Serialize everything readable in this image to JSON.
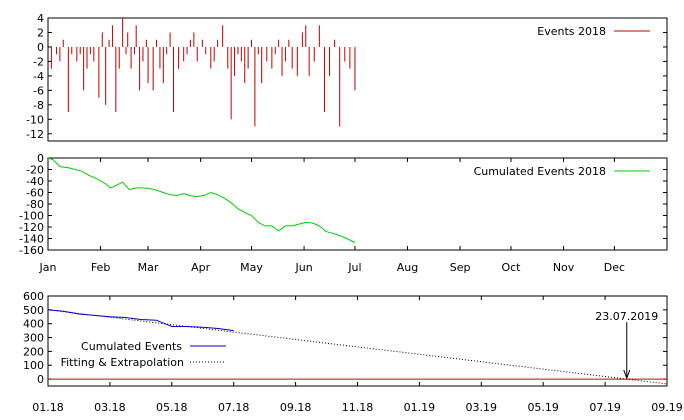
{
  "colors": {
    "bar": "#c00000",
    "cumulative": "#00cc00",
    "fit_line": "#0000cc",
    "zero_line": "#cc0000",
    "axis": "#000000"
  },
  "chart_data": [
    {
      "type": "bar",
      "legend": "Events 2018",
      "legend_position": "top-right",
      "ylim": [
        -13,
        4
      ],
      "yticks": [
        4,
        2,
        0,
        -2,
        -4,
        -6,
        -8,
        -10,
        -12
      ],
      "x_range_days": [
        0,
        365
      ],
      "x": [
        2,
        5,
        7,
        9,
        12,
        14,
        17,
        19,
        21,
        23,
        25,
        27,
        30,
        32,
        34,
        36,
        38,
        40,
        42,
        44,
        46,
        47,
        49,
        51,
        52,
        54,
        56,
        58,
        59,
        62,
        64,
        66,
        68,
        70,
        72,
        74,
        77,
        80,
        82,
        84,
        86,
        88,
        91,
        93,
        96,
        98,
        100,
        103,
        106,
        108,
        110,
        112,
        114,
        116,
        118,
        120,
        122,
        124,
        126,
        129,
        132,
        134,
        136,
        138,
        140,
        142,
        144,
        147,
        150,
        152,
        154,
        157,
        160,
        163,
        166,
        169,
        172,
        175,
        178,
        181
      ],
      "values": [
        -3,
        -1,
        -2,
        1,
        -9,
        -1,
        -2,
        -1,
        -6,
        -3,
        -1,
        -2,
        -7,
        2,
        -8,
        1,
        3,
        -9,
        -3,
        4,
        -1,
        2,
        -3,
        -1,
        3,
        -6,
        -2,
        1,
        -5,
        -6,
        1,
        -3,
        -5,
        -1,
        2,
        -9,
        -3,
        -2,
        -1,
        1,
        2,
        -2,
        1,
        -1,
        -3,
        -2,
        1,
        3,
        -3,
        -10,
        -4,
        -1,
        -2,
        -5,
        -3,
        1,
        -11,
        -1,
        -5,
        -2,
        -3,
        -1,
        1,
        -4,
        -2,
        1,
        -3,
        -4,
        2,
        3,
        -4,
        -2,
        3,
        -9,
        -4,
        1,
        -11,
        -2,
        -3,
        -6
      ]
    },
    {
      "type": "line",
      "legend": "Cumulated Events 2018",
      "legend_position": "top-right",
      "ylim": [
        -160,
        0
      ],
      "yticks": [
        0,
        -20,
        -40,
        -60,
        -80,
        -100,
        -120,
        -140,
        -160
      ],
      "xticks": [
        "Jan",
        "Feb",
        "Mar",
        "Apr",
        "May",
        "Jun",
        "Jul",
        "Aug",
        "Sep",
        "Oct",
        "Nov",
        "Dec"
      ],
      "x": [
        0,
        3,
        7,
        12,
        16,
        20,
        24,
        28,
        31,
        34,
        37,
        40,
        44,
        48,
        52,
        56,
        60,
        64,
        68,
        72,
        76,
        80,
        84,
        88,
        92,
        96,
        100,
        104,
        108,
        112,
        116,
        120,
        124,
        128,
        132,
        136,
        140,
        144,
        148,
        152,
        156,
        160,
        164,
        168,
        172,
        176,
        181
      ],
      "y": [
        0,
        -3,
        -15,
        -17,
        -20,
        -23,
        -30,
        -35,
        -40,
        -45,
        -52,
        -48,
        -42,
        -55,
        -52,
        -52,
        -53,
        -56,
        -60,
        -64,
        -65,
        -62,
        -66,
        -67,
        -65,
        -60,
        -64,
        -70,
        -78,
        -88,
        -95,
        -100,
        -112,
        -118,
        -118,
        -127,
        -118,
        -118,
        -115,
        -112,
        -113,
        -118,
        -128,
        -131,
        -135,
        -140,
        -147
      ]
    },
    {
      "type": "line",
      "legend_position": "bottom-left",
      "ylim": [
        -50,
        600
      ],
      "yticks": [
        600,
        500,
        400,
        300,
        200,
        100,
        0
      ],
      "xticks": [
        "01.18",
        "03.18",
        "05.18",
        "07.18",
        "09.18",
        "11.18",
        "01.19",
        "03.19",
        "05.19",
        "07.19",
        "09.19"
      ],
      "x_range_months": [
        0,
        20
      ],
      "series": [
        {
          "name": "Cumulated Events",
          "x": [
            0,
            0.5,
            1,
            1.5,
            2,
            2.5,
            3,
            3.5,
            4,
            4.5,
            5,
            5.5,
            6
          ],
          "y": [
            500,
            490,
            470,
            460,
            450,
            445,
            430,
            425,
            380,
            380,
            375,
            365,
            350
          ]
        },
        {
          "name": "Fitting & Extrapolation",
          "x": [
            0,
            20
          ],
          "y": [
            500,
            -35
          ]
        }
      ],
      "reference_line": 0,
      "annotation": {
        "text": "23.07.2019",
        "x": 18.7,
        "y": 0
      }
    }
  ]
}
